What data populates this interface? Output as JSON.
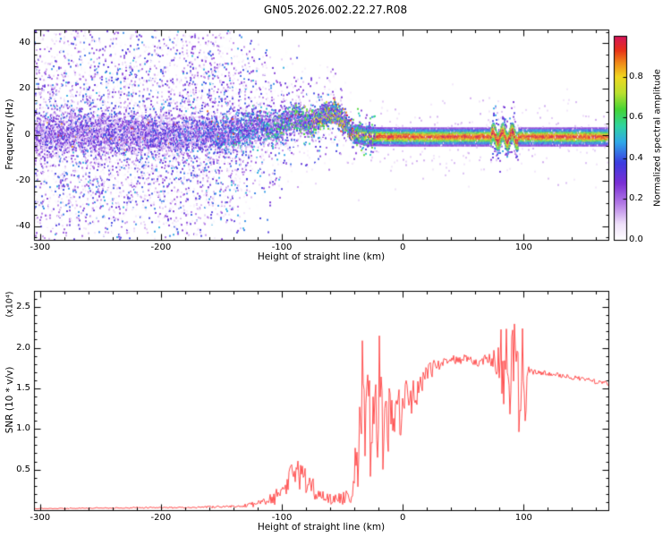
{
  "title": "GN05.2026.002.22.27.R08",
  "chart_data": [
    {
      "type": "heatmap",
      "xlabel": "Height of straight line (km)",
      "ylabel": "Frequency (Hz)",
      "xlim": [
        -305,
        170
      ],
      "ylim": [
        -46,
        46
      ],
      "xticks": [
        "-300",
        "-200",
        "-100",
        "0",
        "100"
      ],
      "xtick_values": [
        -300,
        -200,
        -100,
        0,
        100
      ],
      "yticks": [
        "40",
        "20",
        "0",
        "-20",
        "-40"
      ],
      "ytick_values": [
        40,
        20,
        0,
        -20,
        -40
      ],
      "colorbar": {
        "label": "Normalized spectral amplitude",
        "range": [
          0,
          1
        ],
        "ticks": [
          "0.0",
          "0.2",
          "0.4",
          "0.6",
          "0.8"
        ],
        "tick_values": [
          0,
          0.2,
          0.4,
          0.6,
          0.8
        ],
        "colormap": [
          {
            "t": 0.0,
            "color": "#ffffff"
          },
          {
            "t": 0.08,
            "color": "#efe0fa"
          },
          {
            "t": 0.18,
            "color": "#b37ae6"
          },
          {
            "t": 0.28,
            "color": "#7a2fd4"
          },
          {
            "t": 0.38,
            "color": "#3c3ce0"
          },
          {
            "t": 0.48,
            "color": "#2fa8e8"
          },
          {
            "t": 0.56,
            "color": "#2fd4a0"
          },
          {
            "t": 0.64,
            "color": "#44d435"
          },
          {
            "t": 0.72,
            "color": "#b8e02f"
          },
          {
            "t": 0.8,
            "color": "#f0d820"
          },
          {
            "t": 0.87,
            "color": "#f08818"
          },
          {
            "t": 0.93,
            "color": "#e83318"
          },
          {
            "t": 1.0,
            "color": "#d4145a"
          }
        ]
      },
      "signal": {
        "description": "Broadband noise across all frequencies from -300 to about -140 km concentrating in a band near 0 Hz; band wobbles between 0 and +10 Hz from -130 to -40 km with increasing amplitude; narrow high-amplitude carrier line near -1 Hz from -40 to 170 km with a small disturbance near 75-95 km.",
        "center_track": [
          [
            -305,
            0
          ],
          [
            -220,
            0.5
          ],
          [
            -180,
            -0.5
          ],
          [
            -150,
            0.5
          ],
          [
            -130,
            2
          ],
          [
            -118,
            4.5
          ],
          [
            -108,
            2
          ],
          [
            -97,
            5.5
          ],
          [
            -87,
            7.5
          ],
          [
            -77,
            4
          ],
          [
            -66,
            8.5
          ],
          [
            -56,
            9.5
          ],
          [
            -48,
            5
          ],
          [
            -43,
            2
          ],
          [
            -40,
            0.5
          ],
          [
            -30,
            -0.8
          ],
          [
            0,
            -1
          ],
          [
            170,
            -1
          ]
        ],
        "track_intensity": [
          [
            -305,
            0.38
          ],
          [
            -200,
            0.42
          ],
          [
            -150,
            0.5
          ],
          [
            -120,
            0.58
          ],
          [
            -100,
            0.65
          ],
          [
            -85,
            0.72
          ],
          [
            -70,
            0.8
          ],
          [
            -55,
            0.88
          ],
          [
            -45,
            0.92
          ],
          [
            -40,
            0.95
          ],
          [
            170,
            0.95
          ]
        ],
        "noise_count": [
          [
            -305,
            26
          ],
          [
            -140,
            24
          ],
          [
            -120,
            12
          ],
          [
            -95,
            7
          ],
          [
            -60,
            5
          ],
          [
            -40,
            3
          ]
        ],
        "noise_spread": [
          [
            -305,
            26
          ],
          [
            -150,
            24
          ],
          [
            -120,
            16
          ],
          [
            -90,
            11
          ],
          [
            -40,
            7
          ]
        ],
        "band_sigma": [
          [
            -305,
            4.5
          ],
          [
            -140,
            4
          ],
          [
            -80,
            3
          ],
          [
            -40,
            2.2
          ]
        ],
        "disturbance": {
          "x_range": [
            73,
            96
          ],
          "wiggle_hz": 2.2
        }
      }
    },
    {
      "type": "line",
      "xlabel": "Height of straight line (km)",
      "ylabel": "SNR (10 * v/v)",
      "scale_label": "(x10⁴)",
      "xlim": [
        -305,
        170
      ],
      "ylim": [
        0,
        2.7
      ],
      "xticks": [
        "-300",
        "-200",
        "-100",
        "0",
        "100"
      ],
      "xtick_values": [
        -300,
        -200,
        -100,
        0,
        100
      ],
      "yticks": [
        "0.5",
        "1.0",
        "1.5",
        "2.0",
        "2.5"
      ],
      "ytick_values": [
        0.5,
        1.0,
        1.5,
        2.0,
        2.5
      ],
      "line_color": "#ff4040",
      "points": [
        [
          -305,
          0.02,
          0.005
        ],
        [
          -280,
          0.02,
          0.006
        ],
        [
          -260,
          0.025,
          0.006
        ],
        [
          -240,
          0.025,
          0.008
        ],
        [
          -220,
          0.03,
          0.008
        ],
        [
          -200,
          0.03,
          0.01
        ],
        [
          -185,
          0.03,
          0.01
        ],
        [
          -170,
          0.035,
          0.012
        ],
        [
          -155,
          0.04,
          0.015
        ],
        [
          -145,
          0.04,
          0.015
        ],
        [
          -135,
          0.05,
          0.02
        ],
        [
          -128,
          0.06,
          0.03
        ],
        [
          -121,
          0.07,
          0.04
        ],
        [
          -115,
          0.09,
          0.05
        ],
        [
          -110,
          0.12,
          0.07
        ],
        [
          -105,
          0.17,
          0.1
        ],
        [
          -100,
          0.25,
          0.13
        ],
        [
          -96,
          0.32,
          0.16
        ],
        [
          -92,
          0.4,
          0.18
        ],
        [
          -88,
          0.45,
          0.18
        ],
        [
          -84,
          0.42,
          0.17
        ],
        [
          -80,
          0.36,
          0.16
        ],
        [
          -76,
          0.3,
          0.14
        ],
        [
          -72,
          0.24,
          0.12
        ],
        [
          -68,
          0.19,
          0.1
        ],
        [
          -64,
          0.15,
          0.08
        ],
        [
          -60,
          0.13,
          0.07
        ],
        [
          -56,
          0.12,
          0.07
        ],
        [
          -52,
          0.13,
          0.08
        ],
        [
          -48,
          0.16,
          0.1
        ],
        [
          -44,
          0.2,
          0.14
        ],
        [
          -41,
          0.3,
          0.25
        ],
        [
          -38,
          0.6,
          0.45
        ],
        [
          -35,
          0.9,
          0.6
        ],
        [
          -32,
          1.2,
          0.7
        ],
        [
          -29,
          1.5,
          0.45
        ],
        [
          -27,
          0.8,
          0.5
        ],
        [
          -25,
          1.0,
          0.6
        ],
        [
          -23,
          1.3,
          0.5
        ],
        [
          -21,
          1.1,
          0.6
        ],
        [
          -19,
          2.0,
          0.45
        ],
        [
          -18,
          1.2,
          0.6
        ],
        [
          -16,
          0.8,
          0.45
        ],
        [
          -14,
          0.9,
          0.4
        ],
        [
          -12,
          1.1,
          0.4
        ],
        [
          -10,
          1.2,
          0.35
        ],
        [
          -8,
          1.05,
          0.35
        ],
        [
          -6,
          1.15,
          0.3
        ],
        [
          -4,
          1.25,
          0.3
        ],
        [
          -2,
          1.2,
          0.3
        ],
        [
          0,
          1.3,
          0.28
        ],
        [
          3,
          1.35,
          0.25
        ],
        [
          6,
          1.3,
          0.25
        ],
        [
          9,
          1.4,
          0.22
        ],
        [
          12,
          1.5,
          0.2
        ],
        [
          15,
          1.55,
          0.18
        ],
        [
          18,
          1.62,
          0.15
        ],
        [
          21,
          1.68,
          0.12
        ],
        [
          24,
          1.73,
          0.1
        ],
        [
          27,
          1.78,
          0.08
        ],
        [
          30,
          1.8,
          0.07
        ],
        [
          34,
          1.83,
          0.06
        ],
        [
          38,
          1.85,
          0.06
        ],
        [
          42,
          1.86,
          0.06
        ],
        [
          46,
          1.84,
          0.06
        ],
        [
          50,
          1.86,
          0.06
        ],
        [
          54,
          1.87,
          0.06
        ],
        [
          58,
          1.84,
          0.05
        ],
        [
          62,
          1.82,
          0.05
        ],
        [
          66,
          1.84,
          0.06
        ],
        [
          70,
          1.86,
          0.07
        ],
        [
          74,
          1.85,
          0.09
        ],
        [
          77,
          1.82,
          0.2
        ],
        [
          80,
          1.88,
          0.35
        ],
        [
          83,
          1.75,
          0.5
        ],
        [
          86,
          1.95,
          0.45
        ],
        [
          89,
          1.5,
          0.6
        ],
        [
          92,
          2.0,
          0.4
        ],
        [
          95,
          2.15,
          0.3
        ],
        [
          97,
          1.2,
          0.7
        ],
        [
          99,
          2.3,
          0.2
        ],
        [
          101,
          1.4,
          0.5
        ],
        [
          103,
          1.68,
          0.12
        ],
        [
          105,
          1.73,
          0.05
        ],
        [
          108,
          1.71,
          0.04
        ],
        [
          112,
          1.7,
          0.035
        ],
        [
          118,
          1.69,
          0.03
        ],
        [
          124,
          1.68,
          0.03
        ],
        [
          130,
          1.66,
          0.03
        ],
        [
          136,
          1.65,
          0.03
        ],
        [
          142,
          1.63,
          0.03
        ],
        [
          148,
          1.61,
          0.03
        ],
        [
          154,
          1.6,
          0.03
        ],
        [
          160,
          1.58,
          0.03
        ],
        [
          165,
          1.57,
          0.03
        ],
        [
          170,
          1.55,
          0.03
        ]
      ]
    }
  ]
}
